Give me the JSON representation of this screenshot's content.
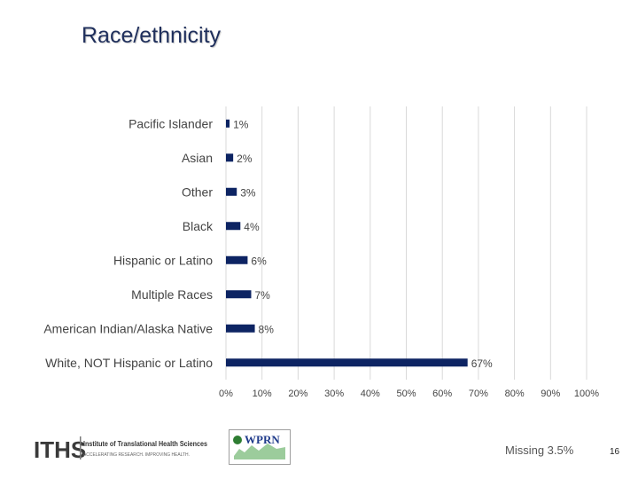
{
  "slide": {
    "title": "Race/ethnicity",
    "missing_note": "Missing 3.5%",
    "page_number": "16"
  },
  "logos": {
    "iths_mark": "ITHS",
    "iths_name_a": "Institute of Translational Health Sciences",
    "iths_tagline": "ACCELERATING RESEARCH. IMPROVING HEALTH.",
    "wprn_mark": "WPRN",
    "accent": "#1e3a8a",
    "wprn_green": "#2e7d32"
  },
  "chart_data": {
    "type": "bar",
    "orientation": "horizontal",
    "categories": [
      "Pacific Islander",
      "Asian",
      "Other",
      "Black",
      "Hispanic or Latino",
      "Multiple Races",
      "American Indian/Alaska Native",
      "White, NOT Hispanic or Latino"
    ],
    "values": [
      1,
      2,
      3,
      4,
      6,
      7,
      8,
      67
    ],
    "data_labels": [
      "1%",
      "2%",
      "3%",
      "4%",
      "6%",
      "7%",
      "8%",
      "67%"
    ],
    "xlim": [
      0,
      100
    ],
    "x_ticks": [
      "0%",
      "10%",
      "20%",
      "30%",
      "40%",
      "50%",
      "60%",
      "70%",
      "80%",
      "90%",
      "100%"
    ],
    "grid": "vertical",
    "bar_color": "#0d2463"
  }
}
